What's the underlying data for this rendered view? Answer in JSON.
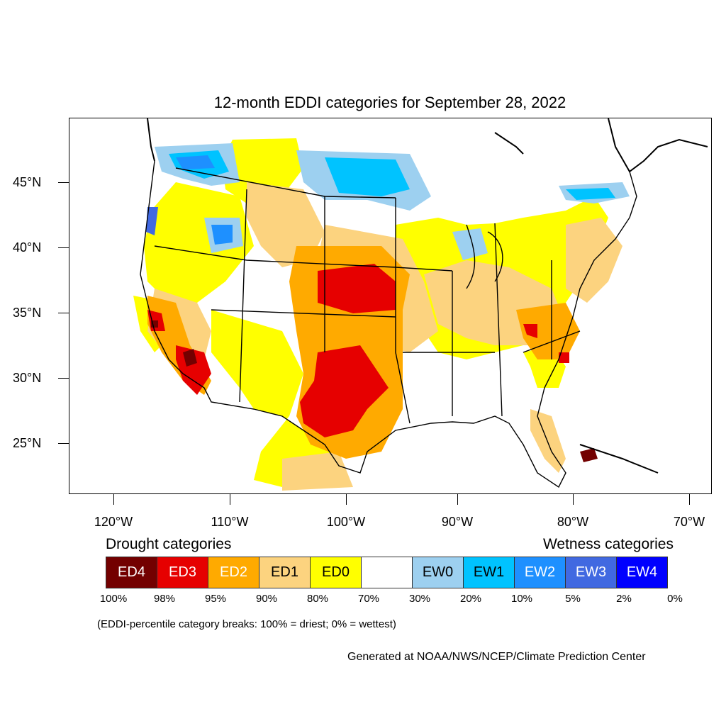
{
  "title": "12-month EDDI categories for September 28, 2022",
  "lat_labels": [
    "45°N",
    "40°N",
    "35°N",
    "30°N",
    "25°N"
  ],
  "lon_labels": [
    "120°W",
    "110°W",
    "100°W",
    "90°W",
    "80°W",
    "70°W"
  ],
  "legend": {
    "drought_title": "Drought categories",
    "wetness_title": "Wetness categories",
    "categories": [
      {
        "label": "ED4",
        "color": "#730000",
        "text_color": "#ffffff"
      },
      {
        "label": "ED3",
        "color": "#e60000",
        "text_color": "#ffffff"
      },
      {
        "label": "ED2",
        "color": "#ffaa00",
        "text_color": "#ffffff"
      },
      {
        "label": "ED1",
        "color": "#fcd37f",
        "text_color": "#000000"
      },
      {
        "label": "ED0",
        "color": "#ffff00",
        "text_color": "#000000"
      },
      {
        "label": "",
        "color": "#ffffff",
        "text_color": "#000000"
      },
      {
        "label": "EW0",
        "color": "#9dd0f0",
        "text_color": "#000000"
      },
      {
        "label": "EW1",
        "color": "#00c3ff",
        "text_color": "#000000"
      },
      {
        "label": "EW2",
        "color": "#1e90ff",
        "text_color": "#ffffff"
      },
      {
        "label": "EW3",
        "color": "#4169e1",
        "text_color": "#ffffff"
      },
      {
        "label": "EW4",
        "color": "#0000ff",
        "text_color": "#ffffff"
      }
    ],
    "breaks": [
      "100%",
      "98%",
      "95%",
      "90%",
      "80%",
      "70%",
      "30%",
      "20%",
      "10%",
      "5%",
      "2%",
      "0%"
    ]
  },
  "note": "(EDDI-percentile category breaks: 100% = driest; 0% = wettest)",
  "credit": "Generated at NOAA/NWS/NCEP/Climate Prediction Center"
}
